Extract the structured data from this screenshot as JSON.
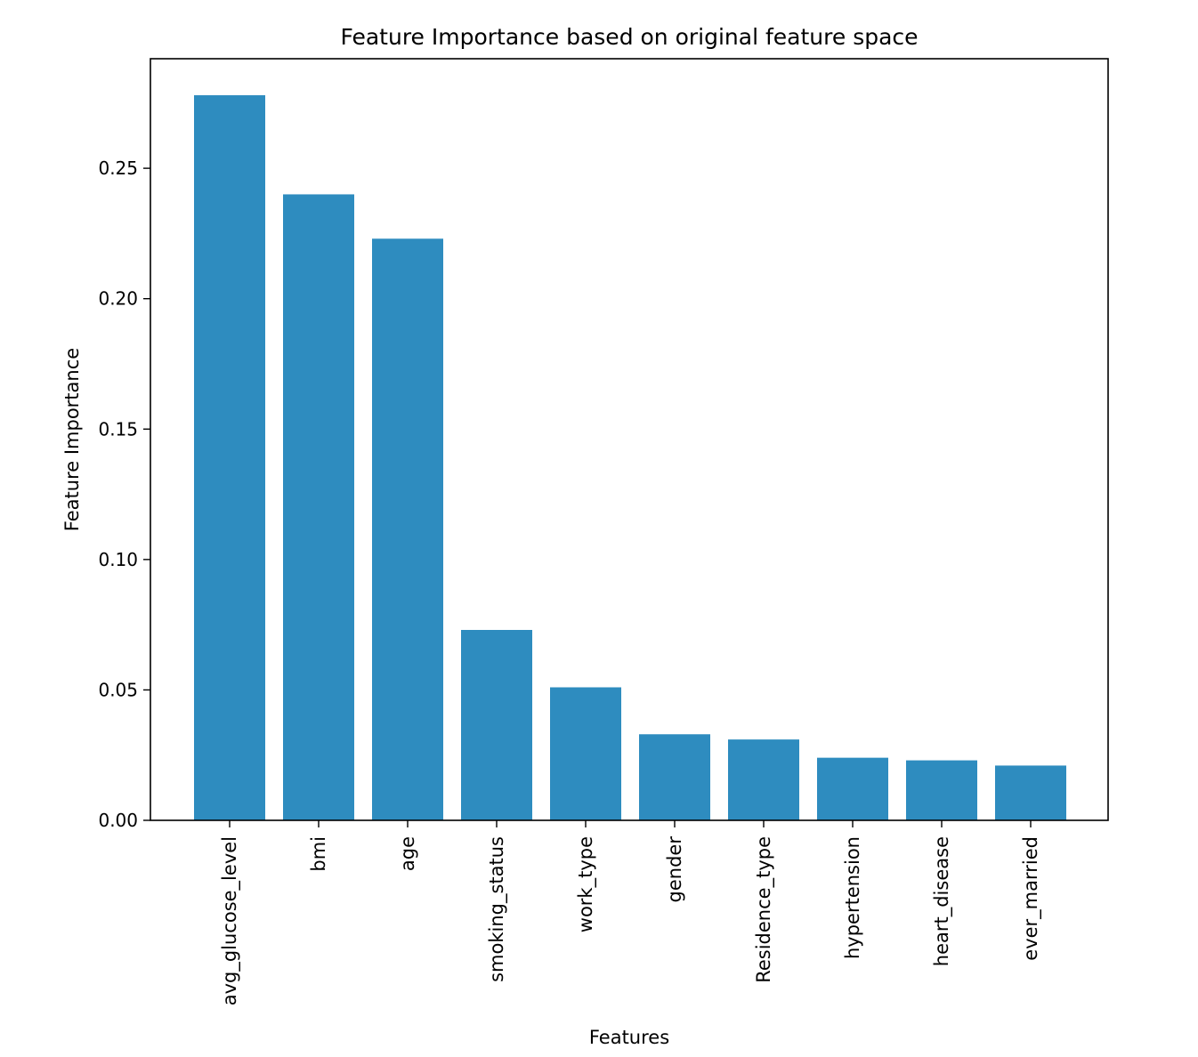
{
  "chart_data": {
    "type": "bar",
    "title": "Feature Importance based on original feature space",
    "xlabel": "Features",
    "ylabel": "Feature Importance",
    "categories": [
      "avg_glucose_level",
      "bmi",
      "age",
      "smoking_status",
      "work_type",
      "gender",
      "Residence_type",
      "hypertension",
      "heart_disease",
      "ever_married"
    ],
    "values": [
      0.278,
      0.24,
      0.223,
      0.073,
      0.051,
      0.033,
      0.031,
      0.024,
      0.023,
      0.021
    ],
    "ylim": [
      0,
      0.292
    ],
    "yticks": [
      0.0,
      0.05,
      0.1,
      0.15,
      0.2,
      0.25
    ],
    "ytick_labels": [
      "0.00",
      "0.05",
      "0.10",
      "0.15",
      "0.20",
      "0.25"
    ],
    "bar_color": "#2e8cbf",
    "grid": false,
    "legend": "none"
  }
}
